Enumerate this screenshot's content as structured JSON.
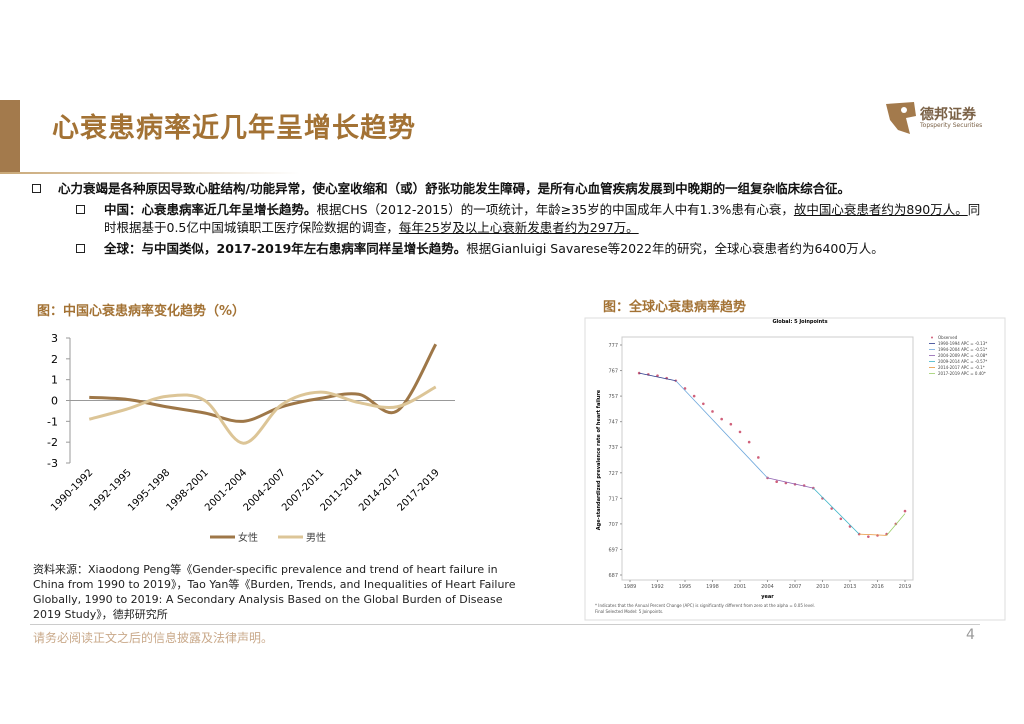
{
  "header": {
    "title": "心衰患病率近几年呈增长趋势",
    "logo_name": "德邦证券",
    "logo_subtitle": "Topsperity Securities"
  },
  "bullets": [
    {
      "segments": [
        {
          "text": "心力衰竭是各种原因导致心脏结构/功能异常，使心室收缩和（或）舒张功能发生障碍，是所有心血管疾病发展到中晚期的一组复杂临床综合征。",
          "style": "bold"
        }
      ],
      "children": [
        {
          "segments": [
            {
              "text": "中国：心衰患病率近几年呈增长趋势。",
              "style": "bold"
            },
            {
              "text": "根据CHS（2012-2015）的一项统计，年龄≥35岁的中国成年人中有1.3%患有心衰，",
              "style": "normal"
            },
            {
              "text": "故中国心衰患者约为890万人。",
              "style": "underline"
            },
            {
              "text": "同时根据基于0.5亿中国城镇职工医疗保险数据的调查，",
              "style": "normal"
            },
            {
              "text": "每年25岁及以上心衰新发患者约为297万。",
              "style": "underline"
            }
          ]
        },
        {
          "segments": [
            {
              "text": "全球：与中国类似，2017-2019年左右患病率同样呈增长趋势。",
              "style": "bold"
            },
            {
              "text": "根据Gianluigi Savarese等2022年的研究，全球心衰患者约为6400万人。",
              "style": "normal"
            }
          ]
        }
      ]
    }
  ],
  "chart_data": [
    {
      "type": "line",
      "title": "图：中国心衰患病率变化趋势（%）",
      "categories": [
        "1990-1992",
        "1992-1995",
        "1995-1998",
        "1998-2001",
        "2001-2004",
        "2004-2007",
        "2007-2011",
        "2011-2014",
        "2014-2017",
        "2017-2019"
      ],
      "series": [
        {
          "name": "女性",
          "color": "#9e7748",
          "values": [
            0.15,
            0.05,
            -0.3,
            -0.6,
            -1.0,
            -0.3,
            0.1,
            0.3,
            -0.5,
            2.7
          ]
        },
        {
          "name": "男性",
          "color": "#dcc597",
          "values": [
            -0.9,
            -0.4,
            0.2,
            0.0,
            -2.05,
            -0.2,
            0.4,
            -0.1,
            -0.3,
            0.65
          ]
        }
      ],
      "ylim": [
        -3,
        3
      ],
      "yticks": [
        -3,
        -2,
        -1,
        0,
        1,
        2,
        3
      ],
      "smooth": true,
      "legend": "bottom"
    },
    {
      "type": "scatter",
      "title": "图：全球心衰患病率趋势",
      "subtitle": "Global: 5 Joinpoints",
      "x_label": "year",
      "y_label": "Age-standardized prevalence rate of heart failure",
      "series": [
        {
          "name": "Observed",
          "color": "#d0607a",
          "style": "markers",
          "x": [
            1990,
            1991,
            1992,
            1993,
            1994,
            1995,
            1996,
            1997,
            1998,
            1999,
            2000,
            2001,
            2002,
            2003,
            2004,
            2005,
            2006,
            2007,
            2008,
            2009,
            2010,
            2011,
            2012,
            2013,
            2014,
            2015,
            2016,
            2017,
            2018,
            2019
          ],
          "values": [
            766,
            765.5,
            765,
            764,
            763,
            760,
            757,
            754,
            751,
            748,
            746,
            743,
            739,
            733,
            725,
            723.5,
            723,
            722.5,
            722,
            721,
            717,
            713,
            709,
            706,
            703,
            702,
            702.5,
            703,
            707,
            712
          ]
        },
        {
          "name": "1990-1994 APC = -0.13*",
          "color": "#2b3a8c",
          "style": "line",
          "x": [
            1990,
            1994
          ],
          "values": [
            766,
            763
          ]
        },
        {
          "name": "1994-2004 APC = -0.51*",
          "color": "#6fa8dc",
          "style": "line",
          "x": [
            1994,
            2004
          ],
          "values": [
            763,
            725
          ]
        },
        {
          "name": "2004-2009 APC = -0.08*",
          "color": "#8e5fb0",
          "style": "line",
          "x": [
            2004,
            2009
          ],
          "values": [
            725,
            721
          ]
        },
        {
          "name": "2009-2014 APC = -0.57*",
          "color": "#3cb4c8",
          "style": "line",
          "x": [
            2009,
            2014
          ],
          "values": [
            721,
            703
          ]
        },
        {
          "name": "2014-2017 APC = -0.1*",
          "color": "#e8963c",
          "style": "line",
          "x": [
            2014,
            2017
          ],
          "values": [
            703,
            702.5
          ]
        },
        {
          "name": "2017-2019 APC = 0.40*",
          "color": "#9ccf6a",
          "style": "line",
          "x": [
            2017,
            2019
          ],
          "values": [
            702.5,
            711
          ]
        }
      ],
      "xlim": [
        1989,
        2019
      ],
      "xticks": [
        1989,
        1992,
        1995,
        1998,
        2001,
        2004,
        2007,
        2010,
        2013,
        2016,
        2019
      ],
      "ylim": [
        687,
        777
      ],
      "yticks": [
        687,
        697,
        707,
        717,
        727,
        737,
        747,
        757,
        767,
        777
      ],
      "notes": [
        "* Indicates that the Annual Percent Change (APC) is significantly different from zero at the alpha = 0.05 level.",
        "Final Selected Model: 5 Joinpoints."
      ]
    }
  ],
  "source": "资料来源：Xiaodong Peng等《Gender-specific prevalence and trend of heart failure in China from 1990 to 2019》，Tao Yan等《Burden, Trends, and Inequalities of Heart Failure Globally, 1990 to 2019: A Secondary Analysis Based on the Global Burden of Disease 2019 Study》，德邦研究所",
  "footer": {
    "disclaimer": "请务必阅读正文之后的信息披露及法律声明。",
    "page": "4"
  }
}
